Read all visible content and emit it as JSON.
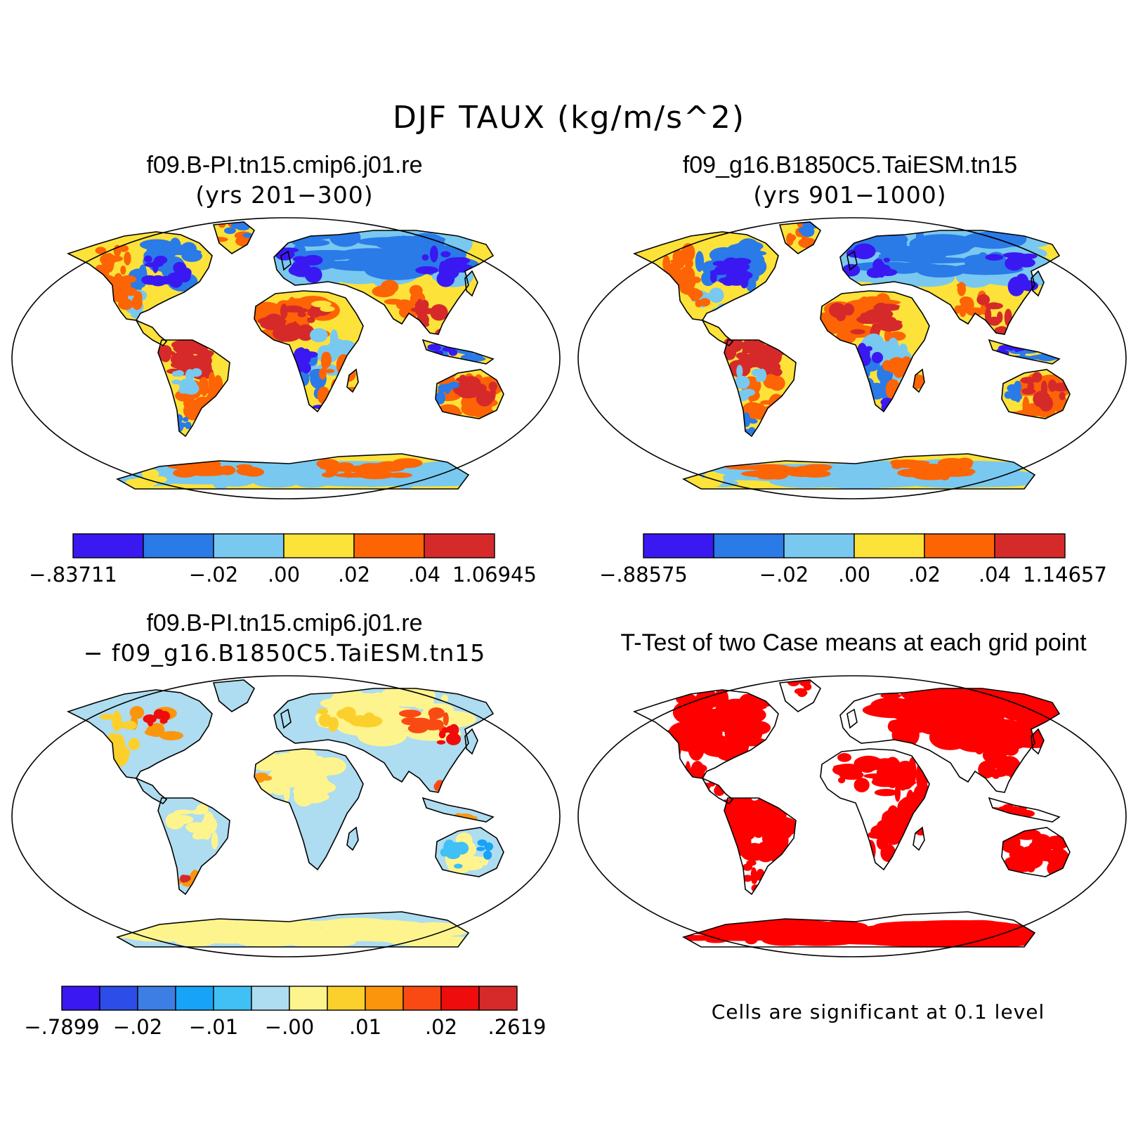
{
  "title": "DJF TAUX (kg/m/s^2)",
  "panels": [
    {
      "title": "f09.B-PI.tn15.cmip6.j01.re",
      "subtitle": "(yrs 201−300)",
      "colorbar": {
        "colors": [
          "#3a18f2",
          "#2a7ae8",
          "#79c8ef",
          "#fde23a",
          "#fc6405",
          "#d62a2a"
        ],
        "labels": [
          {
            "text": "−.83711",
            "boundary": 0
          },
          {
            "text": "−.02",
            "boundary": 2
          },
          {
            "text": ".00",
            "boundary": 3
          },
          {
            "text": ".02",
            "boundary": 4
          },
          {
            "text": ".04",
            "boundary": 5
          },
          {
            "text": "1.06945",
            "boundary": 6
          }
        ]
      }
    },
    {
      "title": "f09_g16.B1850C5.TaiESM.tn15",
      "subtitle": "(yrs 901−1000)",
      "colorbar": {
        "colors": [
          "#3a18f2",
          "#2a7ae8",
          "#79c8ef",
          "#fde23a",
          "#fc6405",
          "#d62a2a"
        ],
        "labels": [
          {
            "text": "−.88575",
            "boundary": 0
          },
          {
            "text": "−.02",
            "boundary": 2
          },
          {
            "text": ".00",
            "boundary": 3
          },
          {
            "text": ".02",
            "boundary": 4
          },
          {
            "text": ".04",
            "boundary": 5
          },
          {
            "text": "1.14657",
            "boundary": 6
          }
        ]
      }
    },
    {
      "title": "f09.B-PI.tn15.cmip6.j01.re",
      "subtitle": "− f09_g16.B1850C5.TaiESM.tn15",
      "colorbar": {
        "colors": [
          "#3a18f2",
          "#2c4de8",
          "#3c7ee4",
          "#17a3f8",
          "#40c0f4",
          "#aedcf0",
          "#fdf48e",
          "#fcd02c",
          "#fb960c",
          "#fa4a14",
          "#ef0c0c",
          "#d62a2a"
        ],
        "labels": [
          {
            "text": "−.7899",
            "boundary": 0
          },
          {
            "text": "−.02",
            "boundary": 2
          },
          {
            "text": "−.01",
            "boundary": 4
          },
          {
            "text": "−.00",
            "boundary": 6
          },
          {
            "text": ".01",
            "boundary": 8
          },
          {
            "text": ".02",
            "boundary": 10
          },
          {
            "text": ".2619",
            "boundary": 12
          }
        ]
      }
    },
    {
      "title": "T-Test of two Case means at each grid point",
      "note": "Cells are significant at 0.1 level",
      "significant_color": "#ff0000"
    }
  ]
}
